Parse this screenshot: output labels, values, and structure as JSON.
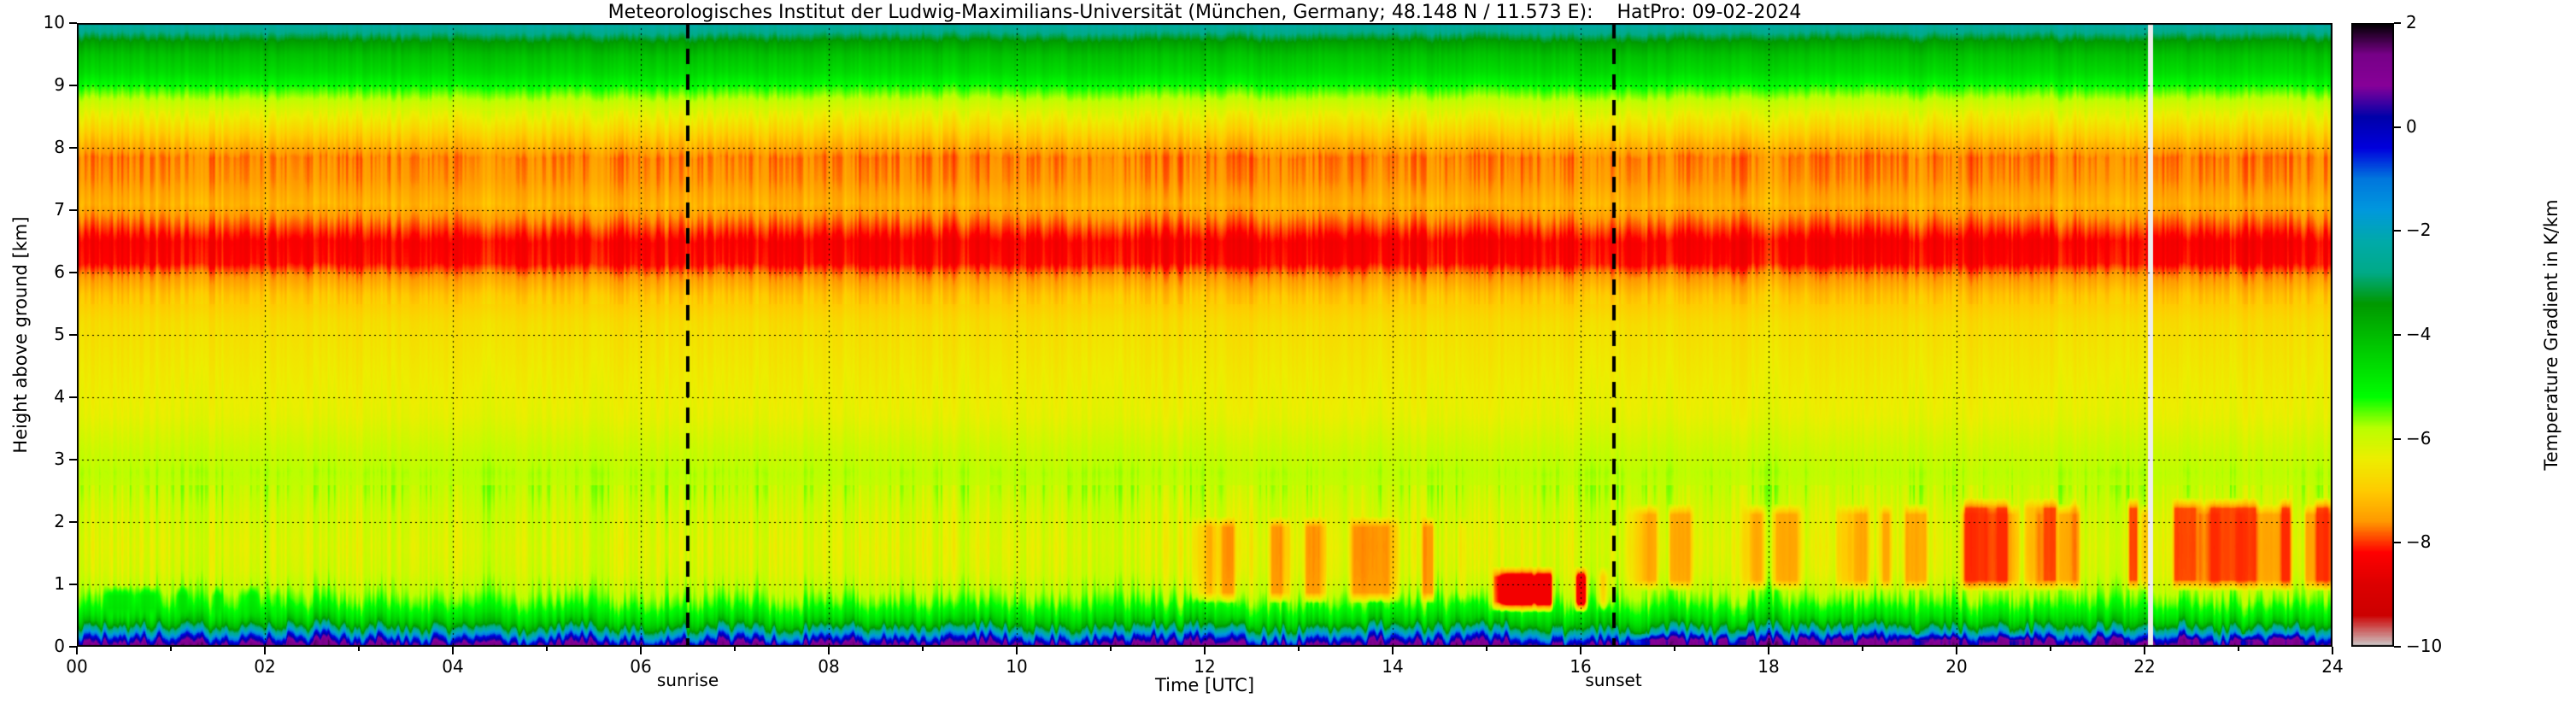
{
  "page": {
    "background": "#ffffff"
  },
  "chart_data": {
    "type": "heatmap",
    "title": "Meteorologisches Institut der Ludwig-Maximilians-Universität (München, Germany; 48.148 N / 11.573 E):    HatPro: 09-02-2024",
    "xlabel": "Time [UTC]",
    "ylabel": "Height above ground [km]",
    "x_range": [
      0,
      24
    ],
    "y_range": [
      0,
      10
    ],
    "x_tick_values": [
      0,
      2,
      4,
      6,
      8,
      10,
      12,
      14,
      16,
      18,
      20,
      22,
      24
    ],
    "x_ticks": [
      "00",
      "02",
      "04",
      "06",
      "08",
      "10",
      "12",
      "14",
      "16",
      "18",
      "20",
      "22",
      "24"
    ],
    "y_tick_values": [
      0,
      1,
      2,
      3,
      4,
      5,
      6,
      7,
      8,
      9,
      10
    ],
    "y_ticks": [
      "0",
      "1",
      "2",
      "3",
      "4",
      "5",
      "6",
      "7",
      "8",
      "9",
      "10"
    ],
    "grid": true,
    "grid_color": "#000000",
    "annotation_color": "#000000",
    "colorbar": {
      "label": "Temperature Gradient in K/km",
      "range": [
        -10,
        2
      ],
      "tick_values": [
        2,
        0,
        -2,
        -4,
        -6,
        -8,
        -10
      ],
      "tick_labels": [
        "2",
        "0",
        "−2",
        "−4",
        "−6",
        "−8",
        "−10"
      ]
    },
    "sun_events": [
      {
        "label": "sunrise",
        "time_utc": 6.5
      },
      {
        "label": "sunset",
        "time_utc": 16.35
      }
    ],
    "data_gap": {
      "t0": 22.03,
      "t1": 22.09,
      "color": "#ededed"
    },
    "base_profile": {
      "heights_km": [
        0.0,
        0.05,
        0.1,
        0.16,
        0.22,
        0.3,
        0.38,
        0.46,
        0.55,
        0.7,
        0.9,
        1.2,
        1.6,
        2.1,
        2.5,
        2.8,
        3.2,
        3.7,
        4.5,
        5.2,
        5.65,
        5.95,
        6.15,
        6.5,
        6.8,
        7.1,
        7.5,
        7.85,
        8.05,
        8.25,
        8.5,
        8.75,
        9.0,
        9.2,
        9.5,
        9.7,
        9.85,
        10.0
      ],
      "gradient_K_per_km": [
        1.2,
        0.7,
        0.0,
        -0.8,
        -1.8,
        -3.0,
        -4.0,
        -4.5,
        -4.9,
        -5.4,
        -5.8,
        -6.1,
        -6.2,
        -6.1,
        -5.9,
        -5.8,
        -6.0,
        -6.3,
        -6.5,
        -6.7,
        -7.1,
        -7.6,
        -8.2,
        -8.3,
        -7.8,
        -7.3,
        -7.6,
        -7.7,
        -7.3,
        -6.9,
        -6.4,
        -5.9,
        -5.2,
        -4.6,
        -4.1,
        -3.5,
        -2.8,
        -2.3
      ]
    },
    "time_features": [
      {
        "t0": 0.0,
        "t1": 2.3,
        "h0": 0.45,
        "h1": 1.0,
        "value": -4.6,
        "strength": 0.55,
        "note": "green turbulent wisps above shallow boundary layer"
      },
      {
        "t0": 11.8,
        "t1": 14.9,
        "h0": 0.7,
        "h1": 2.1,
        "value": -7.9,
        "strength": 0.6,
        "note": "intermittent red streaks of enhanced lapse rate"
      },
      {
        "t0": 14.55,
        "t1": 14.95,
        "h0": 0.25,
        "h1": 0.85,
        "value": -4.4,
        "strength": 0.8,
        "note": "brief deepening of green layer"
      },
      {
        "t0": 14.9,
        "t1": 16.35,
        "h0": 0.55,
        "h1": 1.3,
        "value": -8.4,
        "strength": 0.9,
        "note": "pronounced red patch just before sunset"
      },
      {
        "t0": 16.4,
        "t1": 24.0,
        "h0": 0.9,
        "h1": 2.3,
        "value": -7.8,
        "strength": 0.55,
        "note": "mottled red region after sunset"
      },
      {
        "t0": 19.5,
        "t1": 24.0,
        "h0": 0.9,
        "h1": 2.4,
        "value": -8.1,
        "strength": 0.65,
        "note": "strongest red mottling late evening"
      },
      {
        "t0": 16.4,
        "t1": 24.0,
        "h0": 0.0,
        "h1": 0.22,
        "value": 1.6,
        "strength": 0.65,
        "note": "strengthened dark surface inversion after sunset"
      }
    ],
    "colormap_stops": [
      {
        "v": 2.0,
        "c": "#000000"
      },
      {
        "v": 1.4,
        "c": "#770088"
      },
      {
        "v": 0.8,
        "c": "#880099"
      },
      {
        "v": 0.2,
        "c": "#0000aa"
      },
      {
        "v": -0.4,
        "c": "#0000dd"
      },
      {
        "v": -1.0,
        "c": "#0077dd"
      },
      {
        "v": -1.6,
        "c": "#0099dd"
      },
      {
        "v": -2.2,
        "c": "#00aaaa"
      },
      {
        "v": -2.8,
        "c": "#00aa88"
      },
      {
        "v": -3.4,
        "c": "#009900"
      },
      {
        "v": -4.0,
        "c": "#00bb00"
      },
      {
        "v": -4.6,
        "c": "#00dd00"
      },
      {
        "v": -5.2,
        "c": "#00ff00"
      },
      {
        "v": -5.8,
        "c": "#bbff00"
      },
      {
        "v": -6.4,
        "c": "#eeee00"
      },
      {
        "v": -7.0,
        "c": "#ffcc00"
      },
      {
        "v": -7.6,
        "c": "#ff9900"
      },
      {
        "v": -8.2,
        "c": "#ff0000"
      },
      {
        "v": -8.8,
        "c": "#dd0000"
      },
      {
        "v": -9.4,
        "c": "#cc0000"
      },
      {
        "v": -10.0,
        "c": "#cccccc"
      }
    ]
  }
}
